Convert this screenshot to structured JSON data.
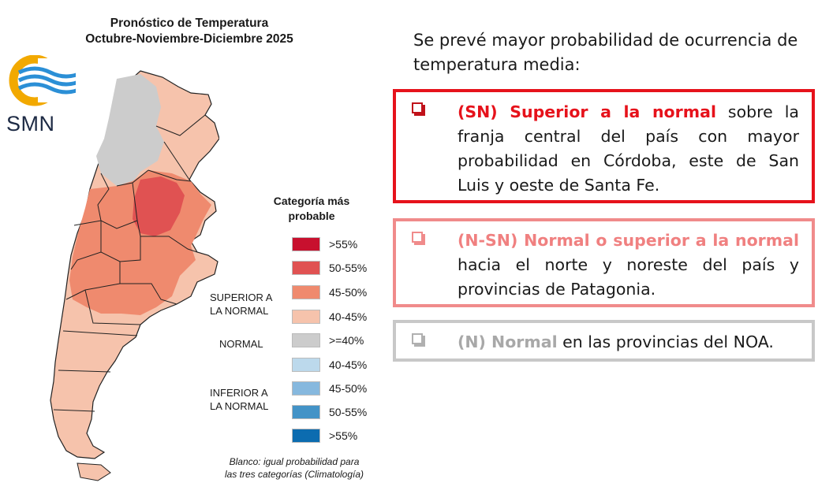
{
  "map_title": {
    "line1": "Pronóstico de Temperatura",
    "line2": "Octubre-Noviembre-Diciembre 2025"
  },
  "logo": {
    "text": "SMN",
    "icon": "smn-sun-waves-logo"
  },
  "legend": {
    "title_line1": "Categoría más",
    "title_line2": "probable",
    "groups": {
      "superior": [
        "SUPERIOR A",
        "LA NORMAL"
      ],
      "normal": "NORMAL",
      "inferior": [
        "INFERIOR A",
        "LA NORMAL"
      ]
    },
    "items": [
      {
        "label": ">55%",
        "color": "#c8102e"
      },
      {
        "label": "50-55%",
        "color": "#e05252"
      },
      {
        "label": "45-50%",
        "color": "#ef8a6e"
      },
      {
        "label": "40-45%",
        "color": "#f6c3ac"
      },
      {
        "label": ">=40%",
        "color": "#cccccc"
      },
      {
        "label": "40-45%",
        "color": "#bcd9ec"
      },
      {
        "label": "45-50%",
        "color": "#86b8de"
      },
      {
        "label": "50-55%",
        "color": "#4393c7"
      },
      {
        "label": ">55%",
        "color": "#0c6cb0"
      }
    ],
    "note_line1": "Blanco: igual probabilidad para",
    "note_line2": "las tres categorías (Climatología)"
  },
  "intro_text": "Se prevé mayor probabilidad de ocurrencia de temperatura media:",
  "boxes": [
    {
      "lead": "(SN) Superior a la normal",
      "rest": " sobre la franja central del país con mayor probabilidad en Córdoba, este de San Luis y oeste de Santa Fe.",
      "border_color": "#e6121b"
    },
    {
      "lead": "(N-SN) Normal o superior a la normal",
      "rest": " hacia el norte y noreste del país y provincias de Patagonia.",
      "border_color": "#f08b8b"
    },
    {
      "lead": "(N) Normal",
      "rest": " en las provincias del NOA.",
      "border_color": "#c8c8c8"
    }
  ]
}
